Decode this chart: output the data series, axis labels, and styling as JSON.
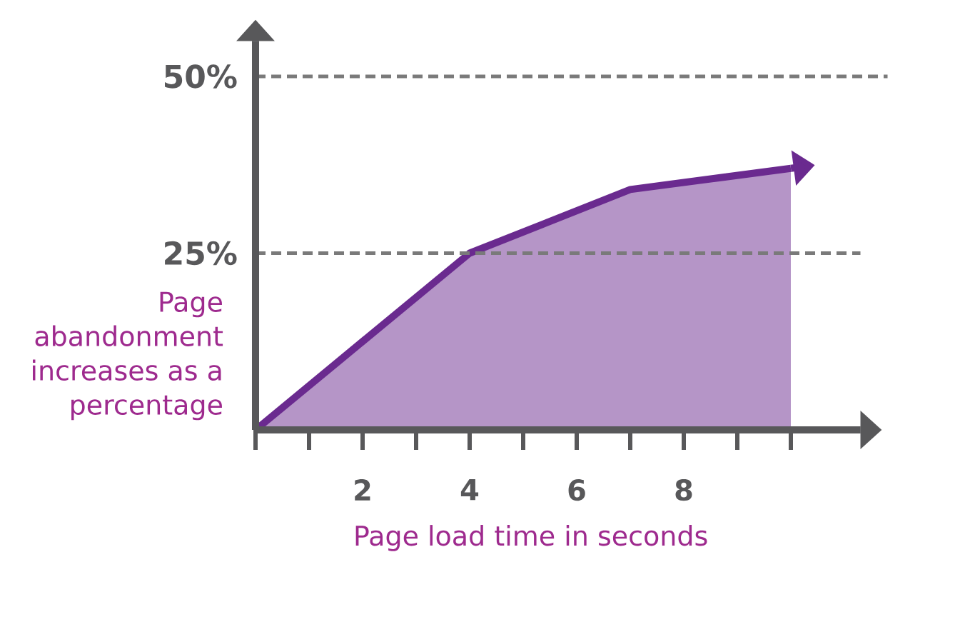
{
  "chart_data": {
    "type": "area",
    "xlabel": "Page load time in seconds",
    "ylabel": "Page abandonment increases as a percentage",
    "x": [
      0,
      4,
      7,
      10
    ],
    "values": [
      0,
      25,
      34,
      37
    ],
    "color": "#6a2a8f",
    "xlim": [
      0,
      11.3
    ],
    "ylim": [
      0,
      55
    ],
    "xticks": [
      {
        "value": 0,
        "label": null
      },
      {
        "value": 1,
        "label": null
      },
      2,
      {
        "value": 3,
        "label": null
      },
      4,
      {
        "value": 5,
        "label": null
      },
      6,
      {
        "value": 7,
        "label": null
      },
      8,
      {
        "value": 9,
        "label": null
      },
      {
        "value": 10,
        "label": null
      }
    ],
    "yticks": [
      {
        "value": 25,
        "label": "25%"
      },
      {
        "value": 50,
        "label": "50%"
      }
    ],
    "grid": "y"
  }
}
